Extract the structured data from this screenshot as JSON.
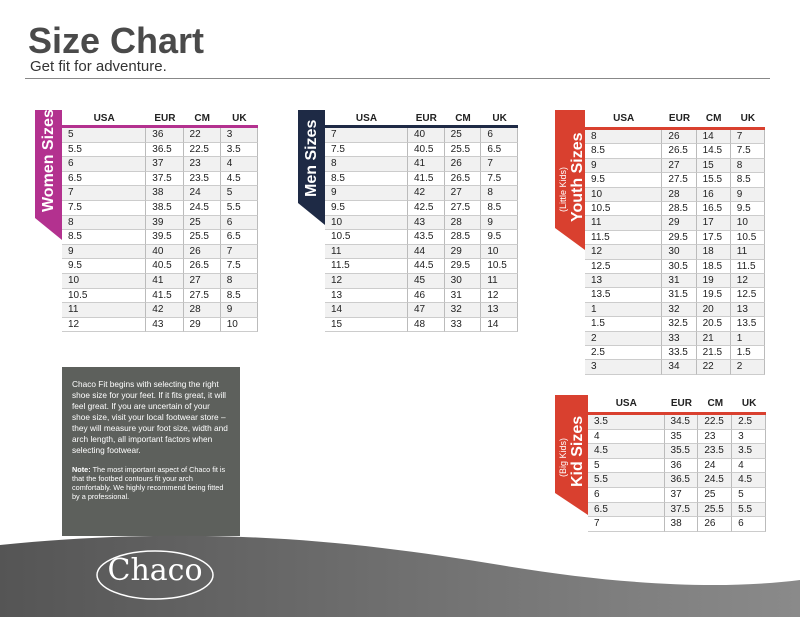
{
  "header": {
    "title": "Size Chart",
    "subtitle": "Get fit for adventure."
  },
  "tables": [
    {
      "title": "Women Sizes",
      "columns": [
        "USA",
        "EUR",
        "CM",
        "UK"
      ],
      "rows": [
        [
          "5",
          "36",
          "22",
          "3"
        ],
        [
          "5.5",
          "36.5",
          "22.5",
          "3.5"
        ],
        [
          "6",
          "37",
          "23",
          "4"
        ],
        [
          "6.5",
          "37.5",
          "23.5",
          "4.5"
        ],
        [
          "7",
          "38",
          "24",
          "5"
        ],
        [
          "7.5",
          "38.5",
          "24.5",
          "5.5"
        ],
        [
          "8",
          "39",
          "25",
          "6"
        ],
        [
          "8.5",
          "39.5",
          "25.5",
          "6.5"
        ],
        [
          "9",
          "40",
          "26",
          "7"
        ],
        [
          "9.5",
          "40.5",
          "26.5",
          "7.5"
        ],
        [
          "10",
          "41",
          "27",
          "8"
        ],
        [
          "10.5",
          "41.5",
          "27.5",
          "8.5"
        ],
        [
          "11",
          "42",
          "28",
          "9"
        ],
        [
          "12",
          "43",
          "29",
          "10"
        ]
      ]
    },
    {
      "title": "Men Sizes",
      "columns": [
        "USA",
        "EUR",
        "CM",
        "UK"
      ],
      "rows": [
        [
          "7",
          "40",
          "25",
          "6"
        ],
        [
          "7.5",
          "40.5",
          "25.5",
          "6.5"
        ],
        [
          "8",
          "41",
          "26",
          "7"
        ],
        [
          "8.5",
          "41.5",
          "26.5",
          "7.5"
        ],
        [
          "9",
          "42",
          "27",
          "8"
        ],
        [
          "9.5",
          "42.5",
          "27.5",
          "8.5"
        ],
        [
          "10",
          "43",
          "28",
          "9"
        ],
        [
          "10.5",
          "43.5",
          "28.5",
          "9.5"
        ],
        [
          "11",
          "44",
          "29",
          "10"
        ],
        [
          "11.5",
          "44.5",
          "29.5",
          "10.5"
        ],
        [
          "12",
          "45",
          "30",
          "11"
        ],
        [
          "13",
          "46",
          "31",
          "12"
        ],
        [
          "14",
          "47",
          "32",
          "13"
        ],
        [
          "15",
          "48",
          "33",
          "14"
        ]
      ]
    },
    {
      "title": "Youth Sizes",
      "subtitle": "(Little Kids)",
      "columns": [
        "USA",
        "EUR",
        "CM",
        "UK"
      ],
      "rows": [
        [
          "8",
          "26",
          "14",
          "7"
        ],
        [
          "8.5",
          "26.5",
          "14.5",
          "7.5"
        ],
        [
          "9",
          "27",
          "15",
          "8"
        ],
        [
          "9.5",
          "27.5",
          "15.5",
          "8.5"
        ],
        [
          "10",
          "28",
          "16",
          "9"
        ],
        [
          "10.5",
          "28.5",
          "16.5",
          "9.5"
        ],
        [
          "11",
          "29",
          "17",
          "10"
        ],
        [
          "11.5",
          "29.5",
          "17.5",
          "10.5"
        ],
        [
          "12",
          "30",
          "18",
          "11"
        ],
        [
          "12.5",
          "30.5",
          "18.5",
          "11.5"
        ],
        [
          "13",
          "31",
          "19",
          "12"
        ],
        [
          "13.5",
          "31.5",
          "19.5",
          "12.5"
        ],
        [
          "1",
          "32",
          "20",
          "13"
        ],
        [
          "1.5",
          "32.5",
          "20.5",
          "13.5"
        ],
        [
          "2",
          "33",
          "21",
          "1"
        ],
        [
          "2.5",
          "33.5",
          "21.5",
          "1.5"
        ],
        [
          "3",
          "34",
          "22",
          "2"
        ]
      ]
    },
    {
      "title": "Kid Sizes",
      "subtitle": "(Big Kids)",
      "columns": [
        "USA",
        "EUR",
        "CM",
        "UK"
      ],
      "rows": [
        [
          "3.5",
          "34.5",
          "22.5",
          "2.5"
        ],
        [
          "4",
          "35",
          "23",
          "3"
        ],
        [
          "4.5",
          "35.5",
          "23.5",
          "3.5"
        ],
        [
          "5",
          "36",
          "24",
          "4"
        ],
        [
          "5.5",
          "36.5",
          "24.5",
          "4.5"
        ],
        [
          "6",
          "37",
          "25",
          "5"
        ],
        [
          "6.5",
          "37.5",
          "25.5",
          "5.5"
        ],
        [
          "7",
          "38",
          "26",
          "6"
        ]
      ]
    }
  ],
  "info": {
    "text": "Chaco Fit begins with selecting the right shoe size for your feet. If it fits great, it will feel great. If you are uncertain of your shoe size, visit your local footwear store – they will measure your foot size, width and arch length, all important factors when selecting footwear.",
    "note_label": "Note:",
    "note": "The most important aspect of Chaco fit is that the footbed contours fit your arch comfortably. We highly recommend being fitted by a professional."
  },
  "logo": "Chaco"
}
